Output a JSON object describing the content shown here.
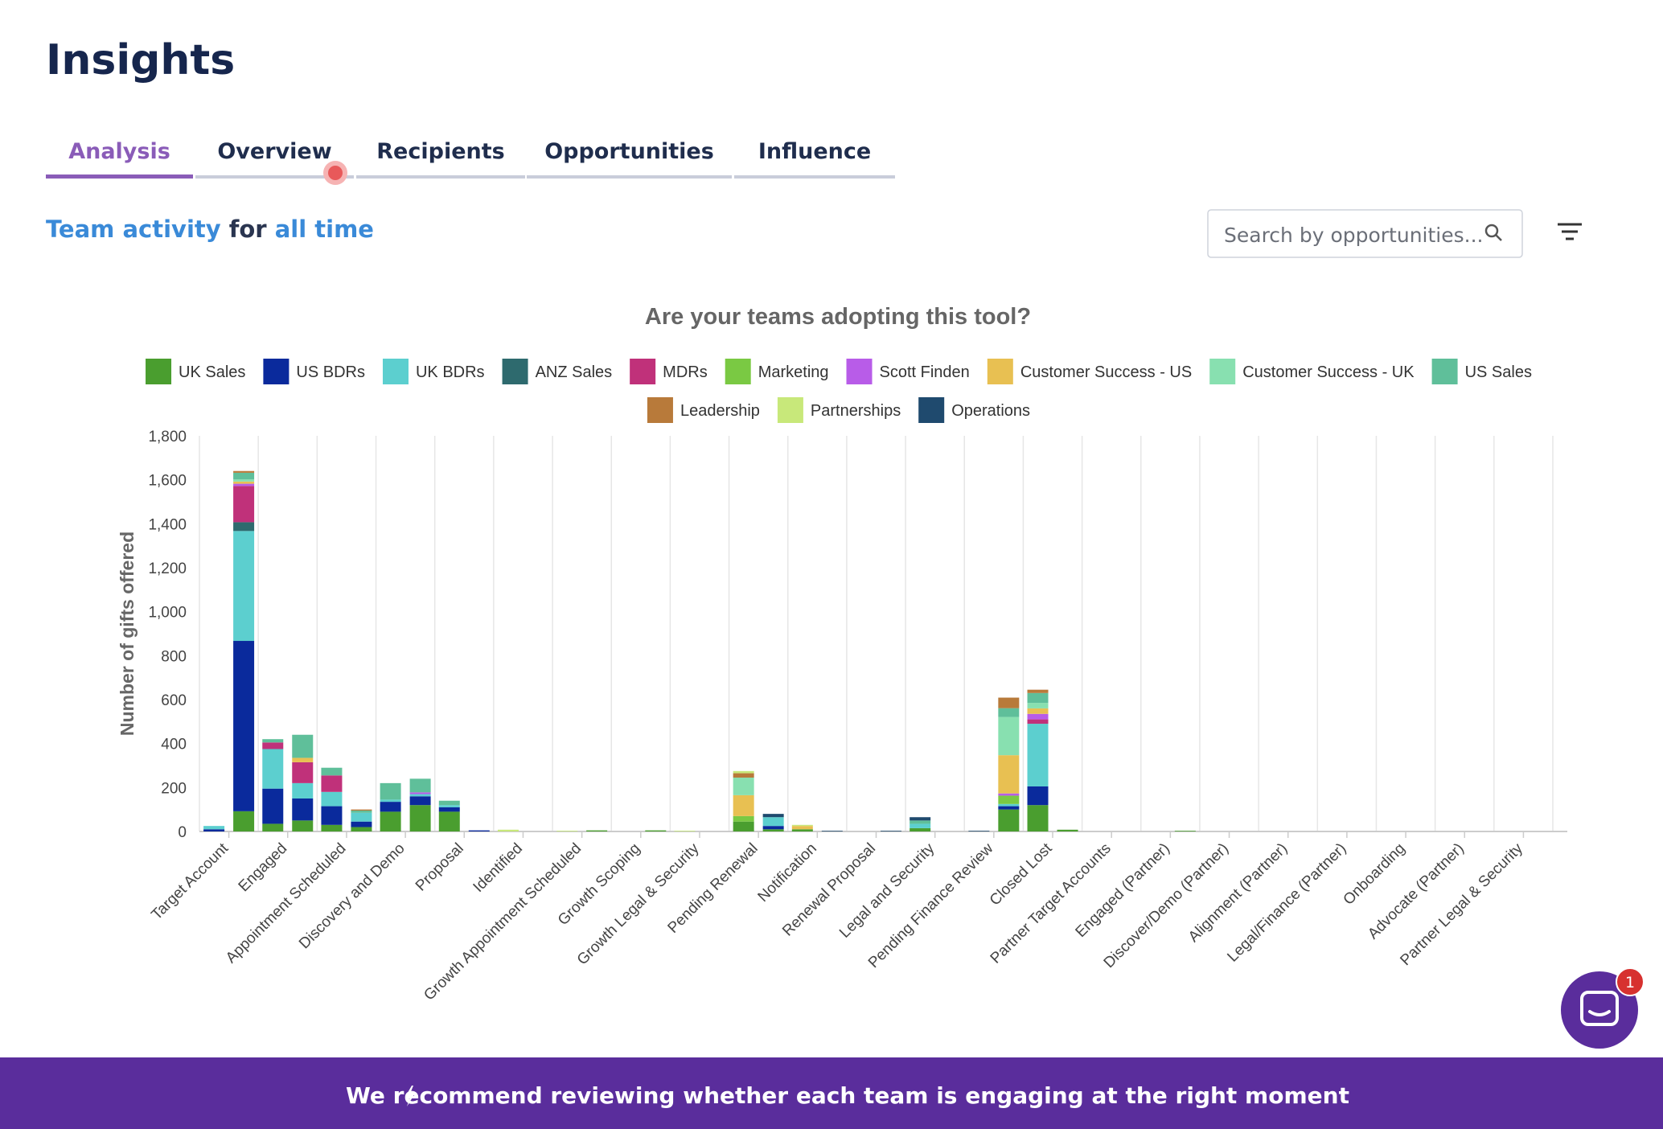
{
  "header": {
    "title": "Insights"
  },
  "tabs": [
    "Analysis",
    "Overview",
    "Recipients",
    "Opportunities",
    "Influence"
  ],
  "subtitle": {
    "lead": "Team activity",
    "joiner": "for",
    "period": "all time"
  },
  "search": {
    "placeholder": "Search by opportunities..."
  },
  "banner": {
    "text": "We recommend reviewing whether each team is engaging at the right moment"
  },
  "badge": 1,
  "chart_data": {
    "type": "bar",
    "stacked": true,
    "grid": true,
    "title": "Are your teams adopting this tool?",
    "y_label": "Number of gifts offered",
    "categories": [
      "Target Account",
      "Engaged",
      "Appointment Scheduled",
      "Discovery and Demo",
      "Proposal",
      "Identified",
      "Growth Appointment Scheduled",
      "Growth Scoping",
      "Growth Legal & Security",
      "Pending Renewal",
      "Notification",
      "Renewal Proposal",
      "Legal and Security",
      "Pending Finance Review",
      "Closed Lost",
      "Partner Target Accounts",
      "Engaged (Partner)",
      "Discover/Demo (Partner)",
      "Alignment (Partner)",
      "Legal/Finance (Partner)",
      "Onboarding",
      "Advocate (Partner)",
      "Partner Legal & Security"
    ],
    "ylim": [
      0,
      1800
    ],
    "yticks": [
      0,
      200,
      400,
      600,
      800,
      {
        "value": 1000,
        "label": "1,000"
      },
      {
        "value": 1200,
        "label": "1,200"
      },
      {
        "value": 1400,
        "label": "1,400"
      },
      {
        "value": 1600,
        "label": "1,600"
      },
      {
        "value": 1800,
        "label": "1,800"
      }
    ],
    "series": [
      {
        "name": "UK Sales",
        "color": "#4a9e2f",
        "values": [
          [
            0,
            92
          ],
          [
            35,
            50
          ],
          [
            30,
            20
          ],
          [
            90,
            120
          ],
          [
            90,
            0
          ],
          [
            0,
            0
          ],
          [
            0,
            5
          ],
          [
            0,
            5
          ],
          [
            0,
            0
          ],
          [
            45,
            10
          ],
          [
            10,
            0
          ],
          [
            0,
            0
          ],
          [
            15,
            0
          ],
          [
            0,
            100
          ],
          [
            120,
            8
          ],
          [
            0,
            0
          ],
          [
            0,
            3
          ],
          [
            0,
            0
          ],
          [
            0,
            0
          ],
          [
            0,
            0
          ],
          [
            0,
            0
          ],
          [
            0,
            0
          ],
          [
            0,
            0
          ]
        ]
      },
      {
        "name": "US BDRs",
        "color": "#0a2a9c",
        "values": [
          [
            10,
            775
          ],
          [
            160,
            100
          ],
          [
            85,
            25
          ],
          [
            45,
            40
          ],
          [
            20,
            5
          ],
          [
            0,
            0
          ],
          [
            0,
            0
          ],
          [
            0,
            0
          ],
          [
            0,
            0
          ],
          [
            0,
            15
          ],
          [
            0,
            0
          ],
          [
            0,
            0
          ],
          [
            0,
            0
          ],
          [
            0,
            15
          ],
          [
            85,
            0
          ],
          [
            0,
            0
          ],
          [
            0,
            0
          ],
          [
            0,
            0
          ],
          [
            0,
            0
          ],
          [
            0,
            0
          ],
          [
            0,
            0
          ],
          [
            0,
            0
          ],
          [
            0,
            0
          ]
        ]
      },
      {
        "name": "UK BDRs",
        "color": "#5ccfcf",
        "values": [
          [
            15,
            500
          ],
          [
            180,
            70
          ],
          [
            65,
            40
          ],
          [
            10,
            10
          ],
          [
            10,
            0
          ],
          [
            0,
            0
          ],
          [
            0,
            0
          ],
          [
            0,
            0
          ],
          [
            0,
            0
          ],
          [
            0,
            40
          ],
          [
            0,
            0
          ],
          [
            0,
            0
          ],
          [
            20,
            0
          ],
          [
            0,
            10
          ],
          [
            285,
            0
          ],
          [
            0,
            0
          ],
          [
            0,
            0
          ],
          [
            0,
            0
          ],
          [
            0,
            0
          ],
          [
            0,
            0
          ],
          [
            0,
            0
          ],
          [
            0,
            0
          ],
          [
            0,
            0
          ]
        ]
      },
      {
        "name": "ANZ Sales",
        "color": "#2e6a6e",
        "values": [
          [
            0,
            40
          ],
          [
            0,
            0
          ],
          [
            0,
            0
          ],
          [
            0,
            0
          ],
          [
            0,
            0
          ],
          [
            0,
            0
          ],
          [
            0,
            0
          ],
          [
            0,
            0
          ],
          [
            0,
            0
          ],
          [
            0,
            0
          ],
          [
            0,
            0
          ],
          [
            0,
            0
          ],
          [
            0,
            0
          ],
          [
            0,
            0
          ],
          [
            0,
            0
          ],
          [
            0,
            0
          ],
          [
            0,
            0
          ],
          [
            0,
            0
          ],
          [
            0,
            0
          ],
          [
            0,
            0
          ],
          [
            0,
            0
          ],
          [
            0,
            0
          ],
          [
            0,
            0
          ]
        ]
      },
      {
        "name": "MDRs",
        "color": "#c0317a",
        "values": [
          [
            0,
            165
          ],
          [
            30,
            95
          ],
          [
            75,
            0
          ],
          [
            0,
            0
          ],
          [
            0,
            0
          ],
          [
            0,
            0
          ],
          [
            0,
            0
          ],
          [
            0,
            0
          ],
          [
            0,
            0
          ],
          [
            0,
            0
          ],
          [
            0,
            0
          ],
          [
            0,
            0
          ],
          [
            0,
            0
          ],
          [
            0,
            0
          ],
          [
            20,
            0
          ],
          [
            0,
            0
          ],
          [
            0,
            0
          ],
          [
            0,
            0
          ],
          [
            0,
            0
          ],
          [
            0,
            0
          ],
          [
            0,
            0
          ],
          [
            0,
            0
          ],
          [
            0,
            0
          ]
        ]
      },
      {
        "name": "Marketing",
        "color": "#7ac943",
        "values": [
          [
            0,
            0
          ],
          [
            0,
            0
          ],
          [
            0,
            0
          ],
          [
            0,
            0
          ],
          [
            0,
            0
          ],
          [
            0,
            0
          ],
          [
            0,
            0
          ],
          [
            0,
            0
          ],
          [
            0,
            0
          ],
          [
            25,
            0
          ],
          [
            0,
            0
          ],
          [
            0,
            0
          ],
          [
            0,
            0
          ],
          [
            0,
            38
          ],
          [
            0,
            0
          ],
          [
            0,
            0
          ],
          [
            0,
            0
          ],
          [
            0,
            0
          ],
          [
            0,
            0
          ],
          [
            0,
            0
          ],
          [
            0,
            0
          ],
          [
            0,
            0
          ],
          [
            0,
            0
          ]
        ]
      },
      {
        "name": "Scott Finden",
        "color": "#b85ce8",
        "values": [
          [
            0,
            10
          ],
          [
            0,
            0
          ],
          [
            0,
            0
          ],
          [
            0,
            8
          ],
          [
            0,
            0
          ],
          [
            0,
            0
          ],
          [
            0,
            0
          ],
          [
            0,
            0
          ],
          [
            0,
            0
          ],
          [
            0,
            0
          ],
          [
            0,
            0
          ],
          [
            0,
            0
          ],
          [
            0,
            0
          ],
          [
            0,
            10
          ],
          [
            25,
            0
          ],
          [
            0,
            0
          ],
          [
            0,
            0
          ],
          [
            0,
            0
          ],
          [
            0,
            0
          ],
          [
            0,
            0
          ],
          [
            0,
            0
          ],
          [
            0,
            0
          ],
          [
            0,
            0
          ]
        ]
      },
      {
        "name": "Customer Success - US",
        "color": "#e8c052",
        "values": [
          [
            0,
            10
          ],
          [
            0,
            20
          ],
          [
            0,
            0
          ],
          [
            0,
            0
          ],
          [
            0,
            0
          ],
          [
            0,
            0
          ],
          [
            0,
            0
          ],
          [
            0,
            0
          ],
          [
            0,
            0
          ],
          [
            95,
            0
          ],
          [
            15,
            0
          ],
          [
            0,
            0
          ],
          [
            0,
            0
          ],
          [
            0,
            174
          ],
          [
            25,
            0
          ],
          [
            0,
            0
          ],
          [
            0,
            0
          ],
          [
            0,
            0
          ],
          [
            0,
            0
          ],
          [
            0,
            0
          ],
          [
            0,
            0
          ],
          [
            0,
            0
          ],
          [
            0,
            0
          ]
        ]
      },
      {
        "name": "Customer Success - UK",
        "color": "#88e0b0",
        "values": [
          [
            0,
            10
          ],
          [
            0,
            0
          ],
          [
            0,
            0
          ],
          [
            0,
            0
          ],
          [
            0,
            0
          ],
          [
            0,
            0
          ],
          [
            0,
            0
          ],
          [
            0,
            0
          ],
          [
            0,
            0
          ],
          [
            80,
            0
          ],
          [
            0,
            0
          ],
          [
            0,
            0
          ],
          [
            0,
            0
          ],
          [
            0,
            174
          ],
          [
            25,
            0
          ],
          [
            0,
            0
          ],
          [
            0,
            0
          ],
          [
            0,
            0
          ],
          [
            0,
            0
          ],
          [
            0,
            0
          ],
          [
            0,
            0
          ],
          [
            0,
            0
          ],
          [
            0,
            0
          ]
        ]
      },
      {
        "name": "US Sales",
        "color": "#5fbf9a",
        "values": [
          [
            0,
            30
          ],
          [
            15,
            105
          ],
          [
            35,
            10
          ],
          [
            75,
            62
          ],
          [
            20,
            0
          ],
          [
            0,
            0
          ],
          [
            0,
            0
          ],
          [
            0,
            0
          ],
          [
            0,
            0
          ],
          [
            0,
            0
          ],
          [
            0,
            0
          ],
          [
            0,
            0
          ],
          [
            15,
            0
          ],
          [
            0,
            40
          ],
          [
            45,
            0
          ],
          [
            0,
            0
          ],
          [
            0,
            0
          ],
          [
            0,
            0
          ],
          [
            0,
            0
          ],
          [
            0,
            0
          ],
          [
            0,
            0
          ],
          [
            0,
            0
          ],
          [
            0,
            0
          ]
        ]
      },
      {
        "name": "Leadership",
        "color": "#b87a3a",
        "values": [
          [
            0,
            8
          ],
          [
            0,
            0
          ],
          [
            0,
            5
          ],
          [
            0,
            0
          ],
          [
            0,
            0
          ],
          [
            0,
            0
          ],
          [
            0,
            0
          ],
          [
            0,
            0
          ],
          [
            0,
            0
          ],
          [
            20,
            0
          ],
          [
            0,
            0
          ],
          [
            0,
            0
          ],
          [
            0,
            0
          ],
          [
            0,
            48
          ],
          [
            15,
            0
          ],
          [
            0,
            0
          ],
          [
            0,
            0
          ],
          [
            0,
            0
          ],
          [
            0,
            0
          ],
          [
            0,
            0
          ],
          [
            0,
            0
          ],
          [
            0,
            0
          ],
          [
            0,
            0
          ]
        ]
      },
      {
        "name": "Partnerships",
        "color": "#c8e87a",
        "values": [
          [
            0,
            0
          ],
          [
            0,
            0
          ],
          [
            0,
            0
          ],
          [
            0,
            0
          ],
          [
            0,
            0
          ],
          [
            8,
            0
          ],
          [
            3,
            0
          ],
          [
            0,
            0
          ],
          [
            3,
            0
          ],
          [
            10,
            0
          ],
          [
            5,
            0
          ],
          [
            0,
            0
          ],
          [
            0,
            0
          ],
          [
            0,
            0
          ],
          [
            0,
            0
          ],
          [
            0,
            0
          ],
          [
            0,
            0
          ],
          [
            0,
            0
          ],
          [
            0,
            0
          ],
          [
            0,
            0
          ],
          [
            0,
            0
          ],
          [
            0,
            0
          ],
          [
            0,
            0
          ]
        ]
      },
      {
        "name": "Operations",
        "color": "#1f4a6e",
        "values": [
          [
            0,
            0
          ],
          [
            0,
            0
          ],
          [
            0,
            0
          ],
          [
            0,
            0
          ],
          [
            0,
            0
          ],
          [
            0,
            0
          ],
          [
            0,
            0
          ],
          [
            0,
            0
          ],
          [
            0,
            0
          ],
          [
            0,
            15
          ],
          [
            0,
            3
          ],
          [
            0,
            3
          ],
          [
            15,
            0
          ],
          [
            3,
            0
          ],
          [
            0,
            0
          ],
          [
            0,
            0
          ],
          [
            0,
            0
          ],
          [
            0,
            0
          ],
          [
            0,
            0
          ],
          [
            0,
            0
          ],
          [
            0,
            0
          ],
          [
            0,
            0
          ],
          [
            0,
            0
          ]
        ]
      }
    ]
  }
}
